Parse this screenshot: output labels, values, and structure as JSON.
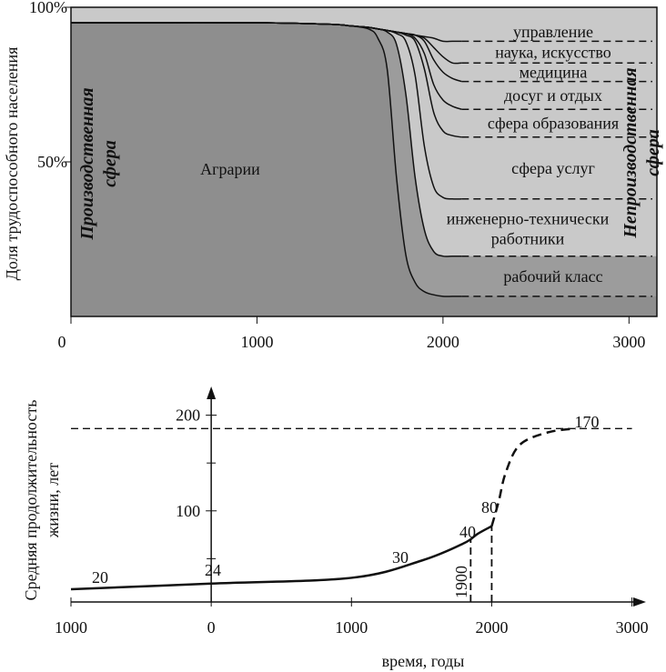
{
  "chart_data": [
    {
      "type": "area",
      "ylabel": "Доля трудоспособного населения",
      "xlim": [
        0,
        3150
      ],
      "ylim": [
        0,
        100
      ],
      "xticks": [
        0,
        1000,
        2000,
        3000
      ],
      "yticks": [
        {
          "value": 50,
          "label": "50%"
        },
        {
          "value": 100,
          "label": "100%"
        }
      ],
      "annotation": "Аграрии",
      "left_label": [
        "Производственная",
        "сфера"
      ],
      "right_label": [
        "Непроизводственная",
        "сфера"
      ],
      "x": [
        0,
        500,
        1000,
        1400,
        1500,
        1600,
        1650,
        1700,
        1750,
        1800,
        1850,
        1900,
        1950,
        2000,
        2050,
        2100
      ],
      "series": [
        {
          "name": "рабочий класс",
          "values": [
            95,
            95,
            95,
            94.5,
            94,
            93,
            90,
            80,
            45,
            20,
            11,
            8,
            7,
            6.5,
            6.5,
            6.5
          ]
        },
        {
          "name": "инженерно-технически работники",
          "values": [
            95,
            95,
            95,
            94.5,
            94,
            93.5,
            93,
            92,
            88,
            72,
            45,
            28,
            21,
            19.5,
            19.5,
            19.5
          ]
        },
        {
          "name": "сфера услуг",
          "values": [
            95,
            95,
            95,
            94.5,
            94,
            93.5,
            93,
            92.5,
            91.5,
            89,
            78,
            55,
            42,
            38.5,
            38,
            38
          ]
        },
        {
          "name": "сфера образования",
          "values": [
            95,
            95,
            95,
            94.5,
            94,
            93.5,
            93,
            92.5,
            92,
            91,
            89,
            80,
            66,
            60,
            58.5,
            58
          ]
        },
        {
          "name": "досуг и отдых",
          "values": [
            95,
            95,
            95,
            94.5,
            94,
            93.5,
            93,
            92.5,
            92,
            91.5,
            90,
            85,
            75,
            70,
            68,
            67
          ]
        },
        {
          "name": "медицина",
          "values": [
            95,
            95,
            95,
            94.5,
            94,
            93.5,
            93,
            92.5,
            92,
            91.5,
            91,
            89,
            83,
            79,
            77,
            76
          ]
        },
        {
          "name": "наука, искусство",
          "values": [
            95,
            95,
            95,
            94.5,
            94,
            93.5,
            93,
            92.5,
            92,
            91.5,
            91,
            90,
            87,
            84,
            82,
            82
          ]
        },
        {
          "name": "управление",
          "values": [
            95,
            95,
            95,
            94.5,
            94,
            93.5,
            93,
            92.5,
            92,
            91.5,
            91,
            90.5,
            90,
            89,
            89,
            89
          ]
        }
      ],
      "colors": {
        "background": "#c9c9c9",
        "workers": "#9c9c9c",
        "agrarian": "#8e8e8e"
      }
    },
    {
      "type": "line",
      "ylabel": [
        "Средняя продолжительность",
        "жизни, лет"
      ],
      "xlabel": "время, годы",
      "xlim": [
        -1000,
        3100
      ],
      "ylim": [
        0,
        230
      ],
      "xticks": [
        {
          "value": -1000,
          "label": "1000"
        },
        0,
        1000,
        2000,
        3000
      ],
      "yticks": [
        100,
        200
      ],
      "yticks_minor": [
        50,
        150
      ],
      "series": [
        {
          "style": "solid",
          "x": [
            -1000,
            0,
            1000,
            1500,
            1800,
            1900,
            2000
          ],
          "values": [
            18,
            24,
            30,
            48,
            66,
            76,
            84
          ]
        },
        {
          "style": "dashed",
          "x": [
            2000,
            2050,
            2100,
            2200,
            2400,
            2600
          ],
          "values": [
            84,
            110,
            140,
            169,
            182,
            186
          ]
        }
      ],
      "asymptote": 186,
      "vlines": [
        1850,
        2000
      ],
      "vline_label": "1900",
      "point_labels": [
        "20",
        "24",
        "30",
        "40",
        "80",
        "170"
      ]
    }
  ]
}
